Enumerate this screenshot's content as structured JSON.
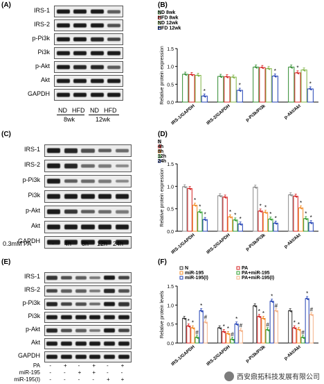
{
  "panels": {
    "A": {
      "label": "(A)",
      "rows": [
        "IRS-1",
        "IRS-2",
        "p-Pi3k",
        "Pi3k",
        "p-Akt",
        "Akt",
        "GAPDH"
      ],
      "lanes": [
        "ND",
        "HFD",
        "ND",
        "HFD"
      ],
      "groups": [
        "8wk",
        "12wk"
      ],
      "bands": [
        [
          1,
          1,
          1,
          0.5
        ],
        [
          1,
          1,
          1,
          0.6
        ],
        [
          1,
          1,
          0.9,
          0.7
        ],
        [
          1,
          1,
          1,
          1
        ],
        [
          1,
          0.9,
          0.9,
          0.5
        ],
        [
          1,
          1,
          1,
          1
        ],
        [
          1,
          1,
          1,
          1
        ]
      ]
    },
    "C": {
      "label": "(C)",
      "rows": [
        "IRS-1",
        "IRS-2",
        "p-Pi3k",
        "Pi3k",
        "p-Akt",
        "Akt",
        "GAPDH"
      ],
      "treatment": "0.3mM PA",
      "lanes": [
        "-",
        "4h",
        "8h",
        "12h",
        "24h"
      ],
      "bands": [
        [
          1,
          0.9,
          0.6,
          0.5,
          0.4
        ],
        [
          1,
          0.9,
          0.4,
          0.3,
          0.2
        ],
        [
          1,
          0.5,
          0.4,
          0.3,
          0.2
        ],
        [
          1,
          1,
          1,
          1,
          1
        ],
        [
          1,
          0.8,
          0.5,
          0.4,
          0.3
        ],
        [
          1,
          1,
          1,
          1,
          1
        ],
        [
          1,
          1,
          1,
          1,
          1
        ]
      ]
    },
    "E": {
      "label": "(E)",
      "rows": [
        "IRS-1",
        "IRS-2",
        "p-Pi3k",
        "Pi3k",
        "p-Akt",
        "Akt",
        "GAPDH"
      ],
      "conditions": [
        {
          "name": "PA",
          "signs": [
            "-",
            "+",
            "-",
            "+",
            "-",
            "+"
          ]
        },
        {
          "name": "miR-195",
          "signs": [
            "-",
            "-",
            "+",
            "+",
            "-",
            "-"
          ]
        },
        {
          "name": "miR-195(I)",
          "signs": [
            "-",
            "-",
            "-",
            "-",
            "+",
            "+"
          ]
        }
      ],
      "bands": [
        [
          0.8,
          0.6,
          0.5,
          0.3,
          1,
          0.7
        ],
        [
          0.7,
          0.5,
          0.5,
          0.3,
          0.9,
          0.6
        ],
        [
          0.9,
          0.7,
          0.6,
          0.4,
          1,
          0.8
        ],
        [
          1,
          1,
          1,
          1,
          1,
          1
        ],
        [
          0.9,
          0.6,
          0.5,
          0.3,
          1,
          0.7
        ],
        [
          1,
          1,
          1,
          1,
          1,
          1
        ],
        [
          1,
          1,
          1,
          1,
          1,
          1
        ]
      ]
    }
  },
  "chart_data": [
    {
      "panel": "(B)",
      "type": "bar",
      "ylabel": "Relative protein expression",
      "ylim": [
        0,
        1.5
      ],
      "yticks": [
        "0.0",
        "0.5",
        "1.0",
        "1.5"
      ],
      "categories": [
        "IRS-1/GAPDH",
        "IRS-2/GAPDH",
        "p-Pi3k/Pi3k",
        "p-Akt/Akt"
      ],
      "series": [
        {
          "name": "ND  8wk",
          "color": "#2e8b2e",
          "values": [
            0.78,
            0.72,
            0.98,
            0.98
          ]
        },
        {
          "name": "HFD 8wk",
          "color": "#d62020",
          "values": [
            0.77,
            0.71,
            0.97,
            0.82
          ]
        },
        {
          "name": "ND  12wk",
          "color": "#7cb342",
          "values": [
            0.75,
            0.7,
            0.94,
            0.9
          ]
        },
        {
          "name": "HFD 12wk",
          "color": "#1f3fb4",
          "values": [
            0.17,
            0.33,
            0.73,
            0.37
          ]
        }
      ],
      "stars": [
        [
          0,
          0,
          0,
          1
        ],
        [
          0,
          0,
          0,
          1
        ],
        [
          0,
          0,
          0,
          1
        ],
        [
          0,
          1,
          0,
          1
        ]
      ]
    },
    {
      "panel": "(D)",
      "type": "bar",
      "ylabel": "Relative protein expression",
      "ylim": [
        0,
        1.5
      ],
      "yticks": [
        "0.0",
        "0.5",
        "1.0",
        "1.5"
      ],
      "categories": [
        "IRS-1/GAPDH",
        "IRS-2/GAPDH",
        "p-Pi3k/Pi3k",
        "p-Akt/Akt"
      ],
      "series": [
        {
          "name": "N",
          "color": "#8a8a8a",
          "values": [
            0.99,
            0.79,
            0.98,
            0.81
          ]
        },
        {
          "name": "4h",
          "color": "#d62020",
          "values": [
            0.95,
            0.76,
            0.45,
            0.78
          ]
        },
        {
          "name": "8h",
          "color": "#f28c28",
          "values": [
            0.58,
            0.32,
            0.42,
            0.52
          ]
        },
        {
          "name": "12h",
          "color": "#2e9e2e",
          "values": [
            0.43,
            0.25,
            0.27,
            0.28
          ]
        },
        {
          "name": "24h",
          "color": "#1f3fb4",
          "values": [
            0.26,
            0.16,
            0.18,
            0.19
          ]
        }
      ],
      "stars": [
        [
          0,
          0,
          1,
          1,
          1
        ],
        [
          0,
          0,
          1,
          1,
          1
        ],
        [
          0,
          1,
          1,
          1,
          1
        ],
        [
          0,
          0,
          1,
          1,
          1
        ]
      ]
    },
    {
      "panel": "(F)",
      "type": "bar",
      "ylabel": "Relative protein levels",
      "ylim": [
        0,
        1.5
      ],
      "yticks": [
        "0.0",
        "0.5",
        "1.0",
        "1.5"
      ],
      "categories": [
        "IRS-1/GAPDH",
        "IRS-2/GAPDH",
        "p-Pi3k/Pi3k",
        "p-Akt/Akt"
      ],
      "series": [
        {
          "name": "N",
          "color": "#333333",
          "values": [
            0.65,
            0.4,
            0.98,
            0.85
          ]
        },
        {
          "name": "PA",
          "color": "#d62020",
          "values": [
            0.45,
            0.3,
            0.7,
            0.4
          ]
        },
        {
          "name": "miR-195",
          "color": "#f28c28",
          "values": [
            0.4,
            0.25,
            0.65,
            0.36
          ]
        },
        {
          "name": "PA+miR-195",
          "color": "#2e9e2e",
          "values": [
            0.15,
            0.1,
            0.35,
            0.15
          ]
        },
        {
          "name": "miR-195(I)",
          "color": "#1f3fb4",
          "values": [
            0.85,
            0.5,
            1.1,
            1.17
          ]
        },
        {
          "name": "PA+miR-195(I)",
          "color": "#f5b085",
          "values": [
            0.55,
            0.33,
            0.85,
            0.75
          ]
        }
      ],
      "marks": [
        [
          "",
          "*",
          "*",
          "#",
          "*",
          "#"
        ],
        [
          "",
          "*",
          "*",
          "#",
          "*",
          "#"
        ],
        [
          "",
          "*",
          "*",
          "#",
          "*",
          "#"
        ],
        [
          "",
          "*",
          "*",
          "#",
          "*",
          "#"
        ]
      ]
    }
  ],
  "watermark": "西安鼎拓科技发展有限公司"
}
